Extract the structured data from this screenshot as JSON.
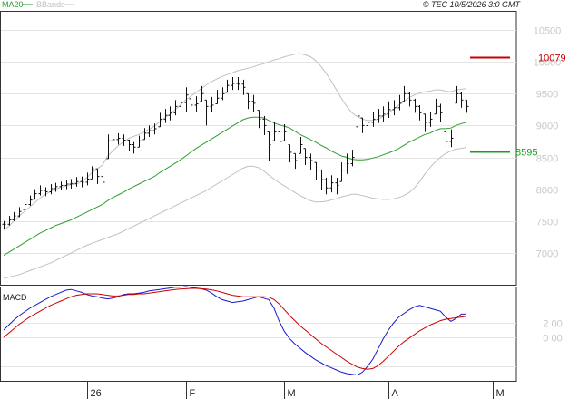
{
  "header": {
    "ma_label": "MA20",
    "bb_label": "BBands",
    "copyright": "© TEC 10/5/2026 3:0 GMT",
    "ma_color": "#2e9e2e",
    "bb_color": "#c0c0c0"
  },
  "macd_panel": {
    "label": "MACD"
  },
  "chart_data": [
    {
      "type": "line",
      "title": "",
      "description_of_series": "daily OHLC bars with MA20 and Bollinger Bands",
      "ylim": [
        6500,
        10800
      ],
      "yticks": [
        7000,
        7500,
        8000,
        8500,
        9000,
        9500,
        10000,
        10500
      ],
      "ytick_labels": [
        "7000",
        "7500",
        "8000",
        "8500",
        "9000",
        "9500",
        "10000",
        "10500"
      ],
      "x_labels": [
        "26",
        "F",
        "M",
        "A",
        "M"
      ],
      "x_label_index": [
        16,
        35,
        54,
        74,
        94
      ],
      "ohlc_close": [
        7450,
        7520,
        7580,
        7650,
        7760,
        7830,
        7930,
        7980,
        7960,
        8010,
        8040,
        8060,
        8080,
        8090,
        8120,
        8110,
        8160,
        8320,
        8200,
        8110,
        8760,
        8780,
        8800,
        8770,
        8700,
        8660,
        8760,
        8880,
        8920,
        8950,
        9100,
        9160,
        9200,
        9300,
        9360,
        9480,
        9320,
        9340,
        9500,
        9300,
        9320,
        9430,
        9500,
        9630,
        9660,
        9650,
        9600,
        9380,
        9350,
        9100,
        9000,
        8700,
        8900,
        8750,
        8900,
        8580,
        8450,
        8700,
        8500,
        8450,
        8300,
        8150,
        8020,
        8100,
        8060,
        8300,
        8400,
        8500,
        9150,
        9000,
        9050,
        9100,
        9150,
        9180,
        9250,
        9280,
        9350,
        9500,
        9400,
        9300,
        9200,
        9050,
        9100,
        9300,
        9200,
        8750,
        8800,
        9500,
        9400,
        9300
      ],
      "ohlc_range": [
        [
          7380,
          7500
        ],
        [
          7430,
          7580
        ],
        [
          7500,
          7640
        ],
        [
          7560,
          7720
        ],
        [
          7680,
          7840
        ],
        [
          7740,
          7900
        ],
        [
          7840,
          8000
        ],
        [
          7900,
          8060
        ],
        [
          7890,
          8030
        ],
        [
          7920,
          8080
        ],
        [
          7960,
          8100
        ],
        [
          7980,
          8120
        ],
        [
          8000,
          8150
        ],
        [
          8010,
          8160
        ],
        [
          8040,
          8190
        ],
        [
          8030,
          8200
        ],
        [
          8060,
          8260
        ],
        [
          8160,
          8360
        ],
        [
          8080,
          8320
        ],
        [
          8020,
          8280
        ],
        [
          8480,
          8860
        ],
        [
          8690,
          8860
        ],
        [
          8700,
          8880
        ],
        [
          8680,
          8860
        ],
        [
          8600,
          8780
        ],
        [
          8560,
          8740
        ],
        [
          8660,
          8840
        ],
        [
          8780,
          8960
        ],
        [
          8820,
          9000
        ],
        [
          8860,
          9030
        ],
        [
          8980,
          9200
        ],
        [
          9040,
          9260
        ],
        [
          9080,
          9300
        ],
        [
          9160,
          9400
        ],
        [
          9200,
          9480
        ],
        [
          9220,
          9600
        ],
        [
          9200,
          9420
        ],
        [
          9220,
          9460
        ],
        [
          9380,
          9620
        ],
        [
          9000,
          9400
        ],
        [
          9220,
          9450
        ],
        [
          9340,
          9560
        ],
        [
          9400,
          9600
        ],
        [
          9520,
          9720
        ],
        [
          9560,
          9760
        ],
        [
          9560,
          9760
        ],
        [
          9480,
          9720
        ],
        [
          9260,
          9500
        ],
        [
          9220,
          9480
        ],
        [
          8960,
          9240
        ],
        [
          8850,
          9150
        ],
        [
          8450,
          8900
        ],
        [
          8760,
          9050
        ],
        [
          8600,
          8900
        ],
        [
          8760,
          9020
        ],
        [
          8420,
          8700
        ],
        [
          8320,
          8560
        ],
        [
          8560,
          8820
        ],
        [
          8380,
          8640
        ],
        [
          8300,
          8560
        ],
        [
          8150,
          8420
        ],
        [
          7980,
          8300
        ],
        [
          7920,
          8180
        ],
        [
          7950,
          8220
        ],
        [
          7920,
          8180
        ],
        [
          8120,
          8420
        ],
        [
          8240,
          8560
        ],
        [
          8360,
          8620
        ],
        [
          8980,
          9260
        ],
        [
          8880,
          9120
        ],
        [
          8920,
          9160
        ],
        [
          8980,
          9220
        ],
        [
          9040,
          9260
        ],
        [
          9060,
          9300
        ],
        [
          9120,
          9380
        ],
        [
          9160,
          9400
        ],
        [
          9240,
          9480
        ],
        [
          9380,
          9620
        ],
        [
          9300,
          9520
        ],
        [
          9200,
          9420
        ],
        [
          9080,
          9320
        ],
        [
          8900,
          9180
        ],
        [
          8980,
          9220
        ],
        [
          9180,
          9420
        ],
        [
          9060,
          9340
        ],
        [
          8600,
          8900
        ],
        [
          8660,
          8940
        ],
        [
          9350,
          9620
        ],
        [
          9280,
          9520
        ],
        [
          9200,
          9400
        ]
      ],
      "ma20": [
        6960,
        7010,
        7060,
        7110,
        7160,
        7210,
        7260,
        7310,
        7350,
        7390,
        7430,
        7460,
        7490,
        7520,
        7560,
        7600,
        7640,
        7680,
        7720,
        7760,
        7820,
        7870,
        7910,
        7950,
        8000,
        8040,
        8080,
        8120,
        8160,
        8200,
        8260,
        8310,
        8360,
        8410,
        8460,
        8520,
        8580,
        8640,
        8690,
        8740,
        8790,
        8840,
        8890,
        8940,
        8990,
        9040,
        9090,
        9120,
        9130,
        9130,
        9120,
        9080,
        9040,
        9010,
        8990,
        8960,
        8910,
        8860,
        8820,
        8780,
        8740,
        8690,
        8650,
        8600,
        8560,
        8520,
        8500,
        8470,
        8460,
        8460,
        8470,
        8490,
        8510,
        8540,
        8570,
        8600,
        8640,
        8690,
        8740,
        8780,
        8820,
        8860,
        8880,
        8920,
        8950,
        8950,
        8960,
        9000,
        9030,
        9050
      ],
      "bb_upper": [
        7350,
        7420,
        7500,
        7580,
        7650,
        7720,
        7790,
        7860,
        7920,
        7960,
        8000,
        8030,
        8050,
        8070,
        8080,
        8120,
        8180,
        8260,
        8320,
        8380,
        8520,
        8600,
        8680,
        8740,
        8800,
        8830,
        8860,
        8900,
        8940,
        8990,
        9060,
        9120,
        9180,
        9250,
        9320,
        9400,
        9460,
        9520,
        9580,
        9640,
        9690,
        9730,
        9770,
        9800,
        9830,
        9860,
        9880,
        9900,
        9920,
        9950,
        9970,
        10000,
        10030,
        10050,
        10080,
        10100,
        10120,
        10130,
        10110,
        10080,
        10020,
        9930,
        9820,
        9700,
        9560,
        9420,
        9300,
        9200,
        9140,
        9100,
        9080,
        9080,
        9100,
        9140,
        9200,
        9260,
        9320,
        9380,
        9440,
        9480,
        9510,
        9530,
        9540,
        9560,
        9560,
        9540,
        9530,
        9560,
        9570,
        9580
      ],
      "bb_lower": [
        6600,
        6620,
        6640,
        6660,
        6690,
        6720,
        6750,
        6780,
        6810,
        6840,
        6880,
        6920,
        6960,
        7000,
        7040,
        7080,
        7120,
        7150,
        7180,
        7210,
        7240,
        7270,
        7300,
        7340,
        7380,
        7420,
        7460,
        7500,
        7540,
        7580,
        7620,
        7660,
        7700,
        7740,
        7780,
        7820,
        7860,
        7900,
        7940,
        7980,
        8030,
        8080,
        8130,
        8180,
        8230,
        8280,
        8330,
        8360,
        8360,
        8340,
        8290,
        8220,
        8160,
        8100,
        8050,
        8000,
        7950,
        7900,
        7860,
        7820,
        7800,
        7800,
        7810,
        7830,
        7850,
        7880,
        7900,
        7920,
        7920,
        7900,
        7880,
        7860,
        7850,
        7840,
        7840,
        7850,
        7870,
        7900,
        7950,
        8020,
        8120,
        8240,
        8340,
        8430,
        8500,
        8560,
        8600,
        8630,
        8640,
        8660
      ],
      "annotations": [
        {
          "label": "10079",
          "value": 10079,
          "color": "#cc0000"
        },
        {
          "label": "8595",
          "value": 8595,
          "color": "#1a9e1a"
        }
      ]
    },
    {
      "type": "line",
      "title": "MACD",
      "ylim": [
        -600,
        700
      ],
      "yticks": [
        0,
        200
      ],
      "ytick_labels": [
        "0 00",
        "2 00"
      ],
      "series": [
        {
          "values": [
            100,
            170,
            240,
            300,
            350,
            400,
            440,
            480,
            520,
            560,
            590,
            620,
            650,
            660,
            640,
            620,
            590,
            570,
            560,
            540,
            530,
            540,
            560,
            590,
            600,
            600,
            610,
            620,
            640,
            650,
            660,
            670,
            680,
            690,
            690,
            700,
            690,
            680,
            670,
            650,
            610,
            560,
            520,
            500,
            480,
            490,
            500,
            520,
            540,
            560,
            540,
            520,
            400,
            220,
            80,
            -20,
            -90,
            -150,
            -210,
            -260,
            -310,
            -350,
            -390,
            -420,
            -450,
            -480,
            -500,
            -510,
            -520,
            -480,
            -400,
            -300,
            -160,
            -20,
            100,
            200,
            280,
            330,
            380,
            420,
            440,
            420,
            400,
            380,
            360,
            280,
            220,
            260,
            320,
            320
          ],
          "color": "#1a1ac8"
        },
        {
          "values": [
            0,
            60,
            120,
            180,
            230,
            280,
            320,
            360,
            400,
            440,
            470,
            500,
            530,
            560,
            580,
            590,
            600,
            600,
            600,
            590,
            580,
            570,
            570,
            580,
            590,
            590,
            600,
            600,
            610,
            620,
            630,
            640,
            650,
            660,
            665,
            670,
            675,
            675,
            670,
            665,
            655,
            640,
            620,
            600,
            580,
            570,
            560,
            560,
            560,
            560,
            560,
            555,
            520,
            460,
            380,
            300,
            230,
            160,
            100,
            40,
            -20,
            -80,
            -130,
            -180,
            -230,
            -280,
            -330,
            -370,
            -410,
            -430,
            -440,
            -430,
            -390,
            -330,
            -260,
            -190,
            -120,
            -60,
            -10,
            40,
            90,
            130,
            170,
            200,
            230,
            250,
            260,
            270,
            280,
            290
          ],
          "color": "#cc0000"
        }
      ]
    }
  ]
}
